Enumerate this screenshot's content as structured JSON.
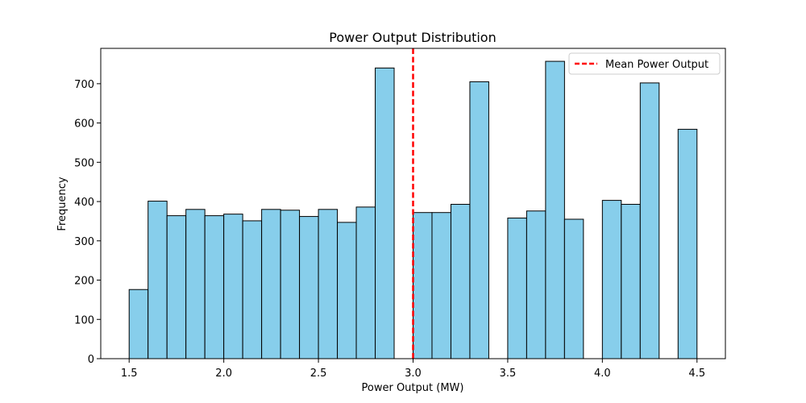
{
  "chart_data": {
    "type": "bar",
    "title": "Power Output Distribution",
    "xlabel": "Power Output (MW)",
    "ylabel": "Frequency",
    "xlim": [
      1.35,
      4.65
    ],
    "ylim": [
      0,
      790
    ],
    "xticks": [
      1.5,
      2.0,
      2.5,
      3.0,
      3.5,
      4.0,
      4.5
    ],
    "xtick_labels": [
      "1.5",
      "2.0",
      "2.5",
      "3.0",
      "3.5",
      "4.0",
      "4.5"
    ],
    "yticks": [
      0,
      100,
      200,
      300,
      400,
      500,
      600,
      700
    ],
    "ytick_labels": [
      "0",
      "100",
      "200",
      "300",
      "400",
      "500",
      "600",
      "700"
    ],
    "bin_width": 0.1,
    "bins": [
      {
        "start": 1.5,
        "count": 176
      },
      {
        "start": 1.6,
        "count": 401
      },
      {
        "start": 1.7,
        "count": 364
      },
      {
        "start": 1.8,
        "count": 380
      },
      {
        "start": 1.9,
        "count": 364
      },
      {
        "start": 2.0,
        "count": 368
      },
      {
        "start": 2.1,
        "count": 351
      },
      {
        "start": 2.2,
        "count": 380
      },
      {
        "start": 2.3,
        "count": 378
      },
      {
        "start": 2.4,
        "count": 362
      },
      {
        "start": 2.5,
        "count": 380
      },
      {
        "start": 2.6,
        "count": 347
      },
      {
        "start": 2.7,
        "count": 386
      },
      {
        "start": 2.8,
        "count": 740
      },
      {
        "start": 2.9,
        "count": 0
      },
      {
        "start": 3.0,
        "count": 372
      },
      {
        "start": 3.1,
        "count": 372
      },
      {
        "start": 3.2,
        "count": 393
      },
      {
        "start": 3.3,
        "count": 705
      },
      {
        "start": 3.4,
        "count": 0
      },
      {
        "start": 3.5,
        "count": 358
      },
      {
        "start": 3.6,
        "count": 376
      },
      {
        "start": 3.7,
        "count": 757
      },
      {
        "start": 3.8,
        "count": 355
      },
      {
        "start": 3.9,
        "count": 0
      },
      {
        "start": 4.0,
        "count": 403
      },
      {
        "start": 4.1,
        "count": 393
      },
      {
        "start": 4.2,
        "count": 702
      },
      {
        "start": 4.3,
        "count": 0
      },
      {
        "start": 4.4,
        "count": 584
      }
    ],
    "mean_line": {
      "x": 3.0,
      "label": "Mean Power Output",
      "color": "#ff0000"
    },
    "bar_color": "#87ceeb",
    "edge_color": "#000000",
    "legend_position": "top-right",
    "grid": false
  }
}
